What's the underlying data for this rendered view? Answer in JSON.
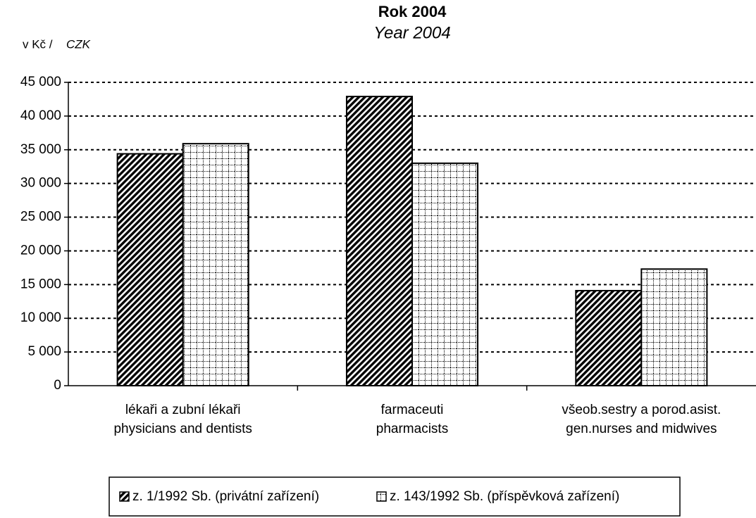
{
  "chart_data": {
    "type": "bar",
    "title": "Rok 2004",
    "subtitle": "Year 2004",
    "ylabel": {
      "cz": "v Kč /",
      "en": "CZK"
    },
    "categories": [
      [
        "lékaři a zubní lékaři",
        "physicians and dentists"
      ],
      [
        "farmaceuti",
        "pharmacists"
      ],
      [
        "všeob.sestry a porod.asist.",
        "gen.nurses and midwives"
      ]
    ],
    "series": [
      {
        "name": "z. 1/1992 Sb. (privátní zařízení)",
        "color": "#000000",
        "pattern": "diagonal",
        "values": [
          34400,
          42900,
          14100
        ]
      },
      {
        "name": "z. 143/1992 Sb. (příspěvková zařízení)",
        "color": "#000000",
        "pattern": "grid",
        "values": [
          35900,
          33000,
          17300
        ]
      }
    ],
    "ylim": [
      0,
      45000
    ],
    "yticks": [
      0,
      {
        "value": 5000,
        "label": "5 000"
      },
      {
        "value": 10000,
        "label": "10 000"
      },
      {
        "value": 15000,
        "label": "15 000"
      },
      {
        "value": 20000,
        "label": "20 000"
      },
      {
        "value": 25000,
        "label": "25 000"
      },
      {
        "value": 30000,
        "label": "30 000"
      },
      {
        "value": 35000,
        "label": "35 000"
      },
      {
        "value": 40000,
        "label": "40 000"
      },
      {
        "value": 45000,
        "label": "45 000"
      }
    ],
    "grid": true,
    "legend": "bottom"
  }
}
